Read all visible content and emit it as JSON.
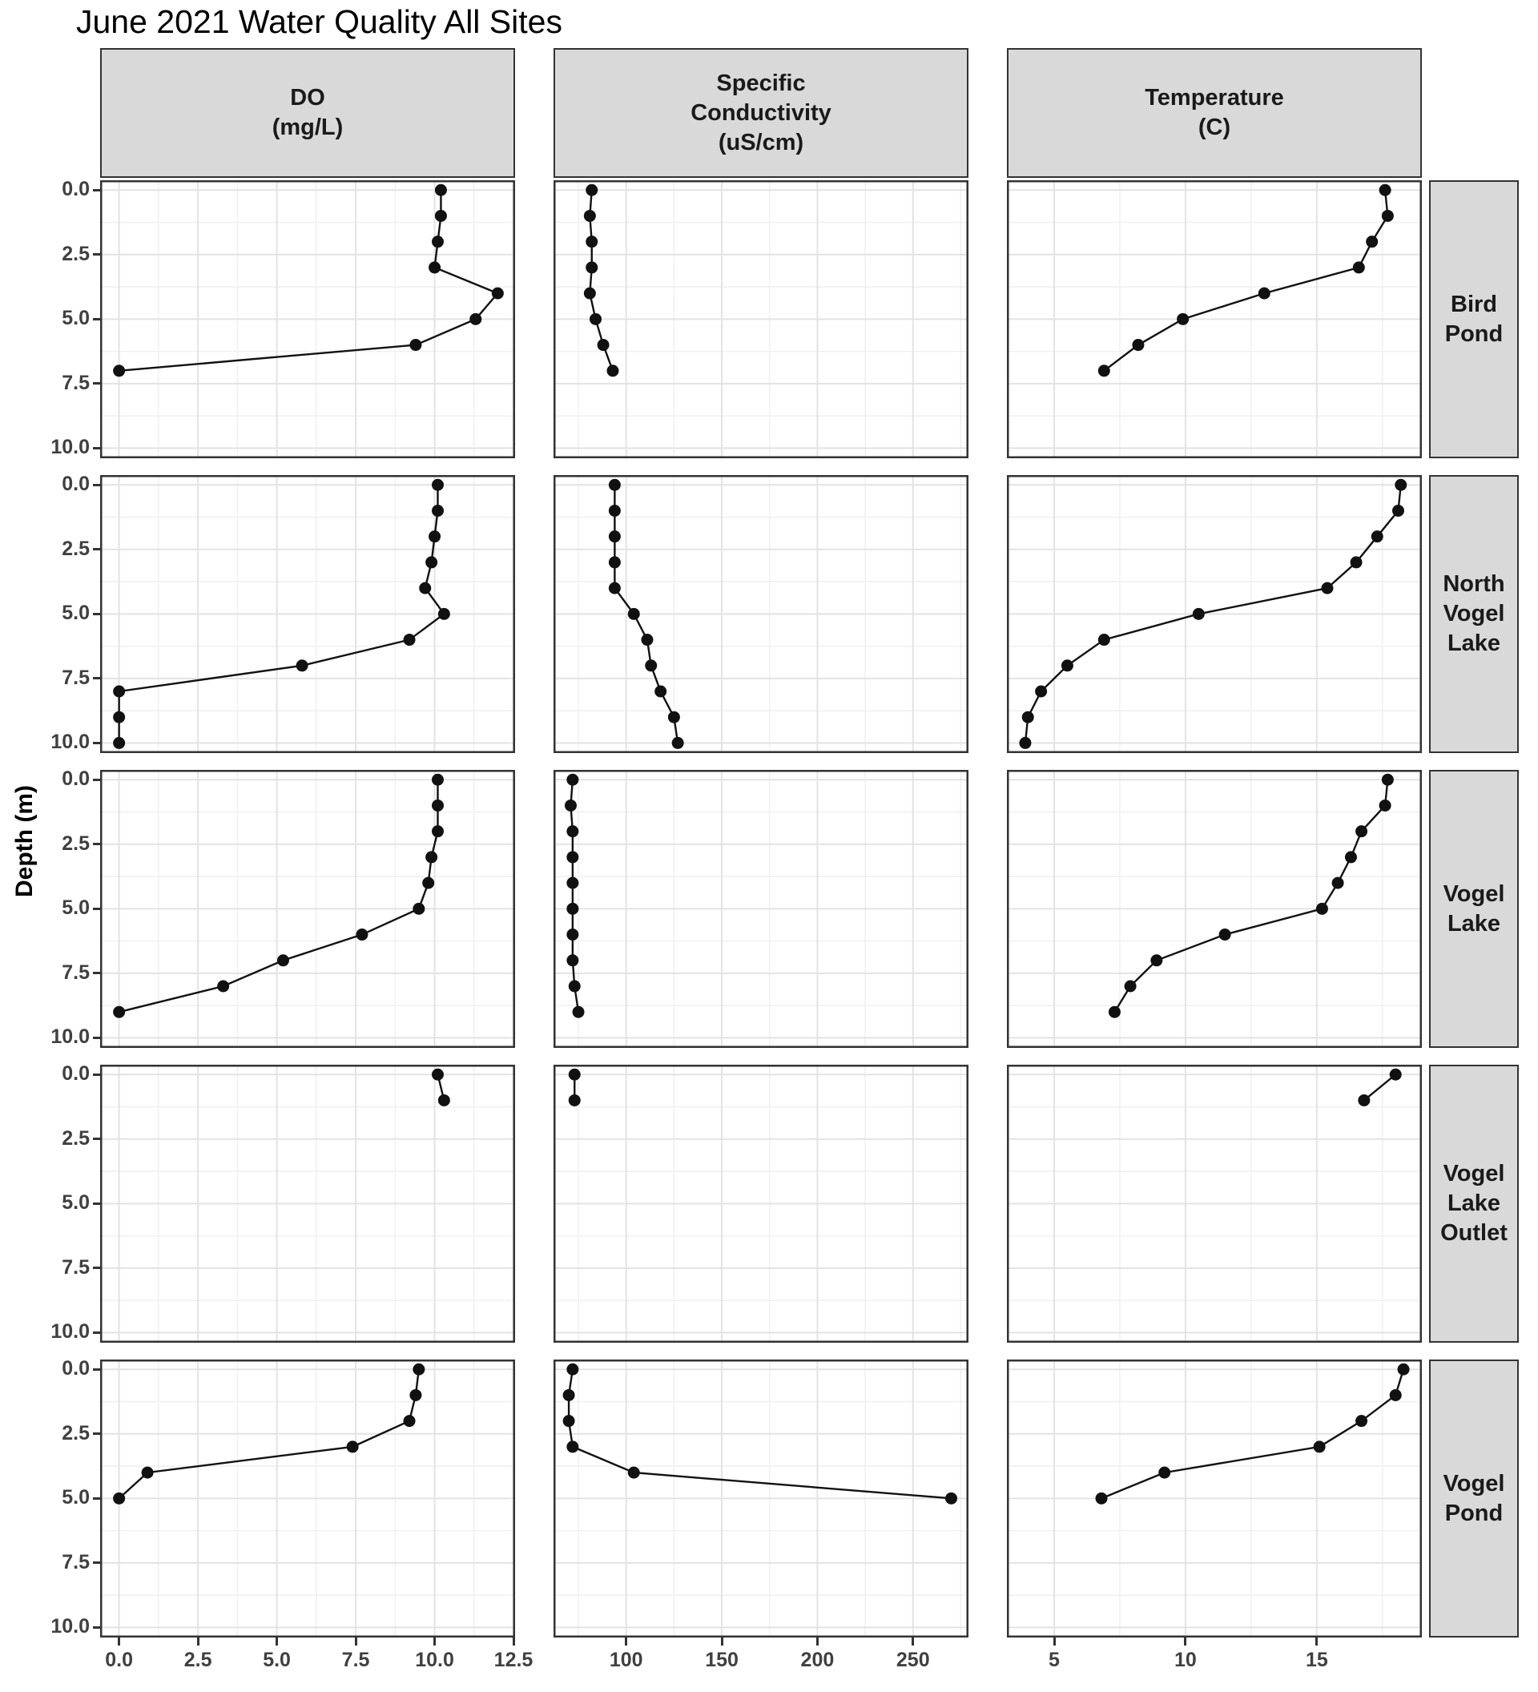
{
  "title": "June 2021 Water Quality All Sites",
  "style": {
    "strip_bg": "#d9d9d9",
    "strip_border": "#333333",
    "panel_border": "#333333",
    "panel_bg": "#ffffff",
    "grid_major": "#e3e3e3",
    "grid_minor": "#f1f1f1",
    "line_color": "#111111",
    "point_color": "#111111",
    "axis_text_color": "#404040"
  },
  "chart_data": {
    "type": "line",
    "title": "June 2021 Water Quality All Sites",
    "subtitle": "",
    "ylabel": "Depth (m)",
    "layout": "faceted grid: 3 parameter columns x 5 site rows, depth profiles with y (depth) increasing downward, points + connecting lines, major and minor gridlines, gray facet strips",
    "legend": "none",
    "y_axis": {
      "ticks": [
        0.0,
        2.5,
        5.0,
        7.5,
        10.0
      ],
      "tick_labels": [
        "0.0",
        "2.5",
        "5.0",
        "7.5",
        "10.0"
      ],
      "minor": [
        1.25,
        3.75,
        6.25,
        8.75
      ],
      "domain": [
        -0.38,
        10.39
      ]
    },
    "columns": [
      {
        "id": "do",
        "label_lines": [
          "DO",
          "(mg/L)"
        ],
        "ticks": [
          0,
          2.5,
          5,
          7.5,
          10,
          12.5
        ],
        "tick_labels": [
          "0.0",
          "2.5",
          "5.0",
          "7.5",
          "10.0",
          "12.5"
        ],
        "minor": [
          1.25,
          3.75,
          6.25,
          8.75,
          11.25
        ],
        "domain": [
          -0.6,
          12.55
        ]
      },
      {
        "id": "cond",
        "label_lines": [
          "Specific",
          "Conductivity",
          "(uS/cm)"
        ],
        "ticks": [
          100,
          150,
          200,
          250
        ],
        "tick_labels": [
          "100",
          "150",
          "200",
          "250"
        ],
        "minor": [
          75,
          125,
          175,
          225,
          275
        ],
        "domain": [
          62,
          279
        ]
      },
      {
        "id": "temp",
        "label_lines": [
          "Temperature",
          "(C)"
        ],
        "ticks": [
          5,
          10,
          15
        ],
        "tick_labels": [
          "5",
          "10",
          "15"
        ],
        "minor": [
          7.5,
          12.5,
          17.5
        ],
        "domain": [
          3.2,
          19.0
        ]
      }
    ],
    "rows": [
      {
        "site": "Bird Pond",
        "label_lines": [
          "Bird",
          "Pond"
        ],
        "depth": [
          0,
          1,
          2,
          3,
          4,
          5,
          6,
          7
        ],
        "do": [
          10.2,
          10.2,
          10.1,
          10.0,
          12.0,
          11.3,
          9.4,
          0.0
        ],
        "cond": [
          82,
          81,
          82,
          82,
          81,
          84,
          88,
          93
        ],
        "temp": [
          17.6,
          17.7,
          17.1,
          16.6,
          13.0,
          9.9,
          8.2,
          6.9
        ]
      },
      {
        "site": "North Vogel Lake",
        "label_lines": [
          "North",
          "Vogel",
          "Lake"
        ],
        "depth": [
          0,
          1,
          2,
          3,
          4,
          5,
          6,
          7,
          8,
          9,
          10
        ],
        "do": [
          10.1,
          10.1,
          10.0,
          9.9,
          9.7,
          10.3,
          9.2,
          5.8,
          0.0,
          0.0,
          0.0
        ],
        "cond": [
          94,
          94,
          94,
          94,
          94,
          104,
          111,
          113,
          118,
          125,
          127
        ],
        "temp": [
          18.2,
          18.1,
          17.3,
          16.5,
          15.4,
          10.5,
          6.9,
          5.5,
          4.5,
          4.0,
          3.9
        ]
      },
      {
        "site": "Vogel Lake",
        "label_lines": [
          "Vogel",
          "Lake"
        ],
        "depth": [
          0,
          1,
          2,
          3,
          4,
          5,
          6,
          7,
          8,
          9
        ],
        "do": [
          10.1,
          10.1,
          10.1,
          9.9,
          9.8,
          9.5,
          7.7,
          5.2,
          3.3,
          0.0
        ],
        "cond": [
          72,
          71,
          72,
          72,
          72,
          72,
          72,
          72,
          73,
          75
        ],
        "temp": [
          17.7,
          17.6,
          16.7,
          16.3,
          15.8,
          15.2,
          11.5,
          8.9,
          7.9,
          7.3
        ]
      },
      {
        "site": "Vogel Lake Outlet",
        "label_lines": [
          "Vogel",
          "Lake",
          "Outlet"
        ],
        "depth": [
          0,
          1
        ],
        "do": [
          10.1,
          10.3
        ],
        "cond": [
          73,
          73
        ],
        "temp": [
          18.0,
          16.8
        ]
      },
      {
        "site": "Vogel Pond",
        "label_lines": [
          "Vogel",
          "Pond"
        ],
        "depth": [
          0,
          1,
          2,
          3,
          4,
          5
        ],
        "do": [
          9.5,
          9.4,
          9.2,
          7.4,
          0.9,
          0.0
        ],
        "cond": [
          72,
          70,
          70,
          72,
          104,
          270
        ],
        "temp": [
          18.3,
          18.0,
          16.7,
          15.1,
          9.2,
          6.8
        ]
      }
    ]
  }
}
